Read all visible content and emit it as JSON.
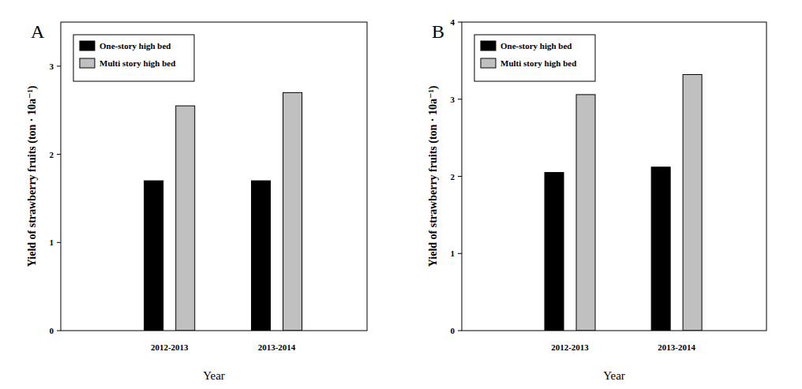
{
  "chart_data": [
    {
      "type": "bar",
      "title": "A",
      "x_label": "Year",
      "y_label": "Yield of strawberry fruits (ton · 10a⁻¹)",
      "categories": [
        "2012-2013",
        "2013-2014"
      ],
      "series": [
        {
          "name": "One-story high bed",
          "color": "#000000",
          "values": [
            1.7,
            1.7
          ]
        },
        {
          "name": "Multi story high bed",
          "color": "#c0c0c0",
          "values": [
            2.55,
            2.7
          ]
        }
      ],
      "ylim": [
        0,
        3.5
      ],
      "yticks": [
        0,
        1,
        2,
        3
      ],
      "legend": "upper left"
    },
    {
      "type": "bar",
      "title": "B",
      "x_label": "Year",
      "y_label": "Yield of strawberry fruits (ton · 10a⁻¹)",
      "categories": [
        "2012-2013",
        "2013-2014"
      ],
      "series": [
        {
          "name": "One-story high bed",
          "color": "#000000",
          "values": [
            2.05,
            2.12
          ]
        },
        {
          "name": "Multi story high bed",
          "color": "#c0c0c0",
          "values": [
            3.06,
            3.32
          ]
        }
      ],
      "ylim": [
        0,
        4
      ],
      "yticks": [
        0,
        1,
        2,
        3,
        4
      ],
      "legend": "upper left"
    }
  ]
}
